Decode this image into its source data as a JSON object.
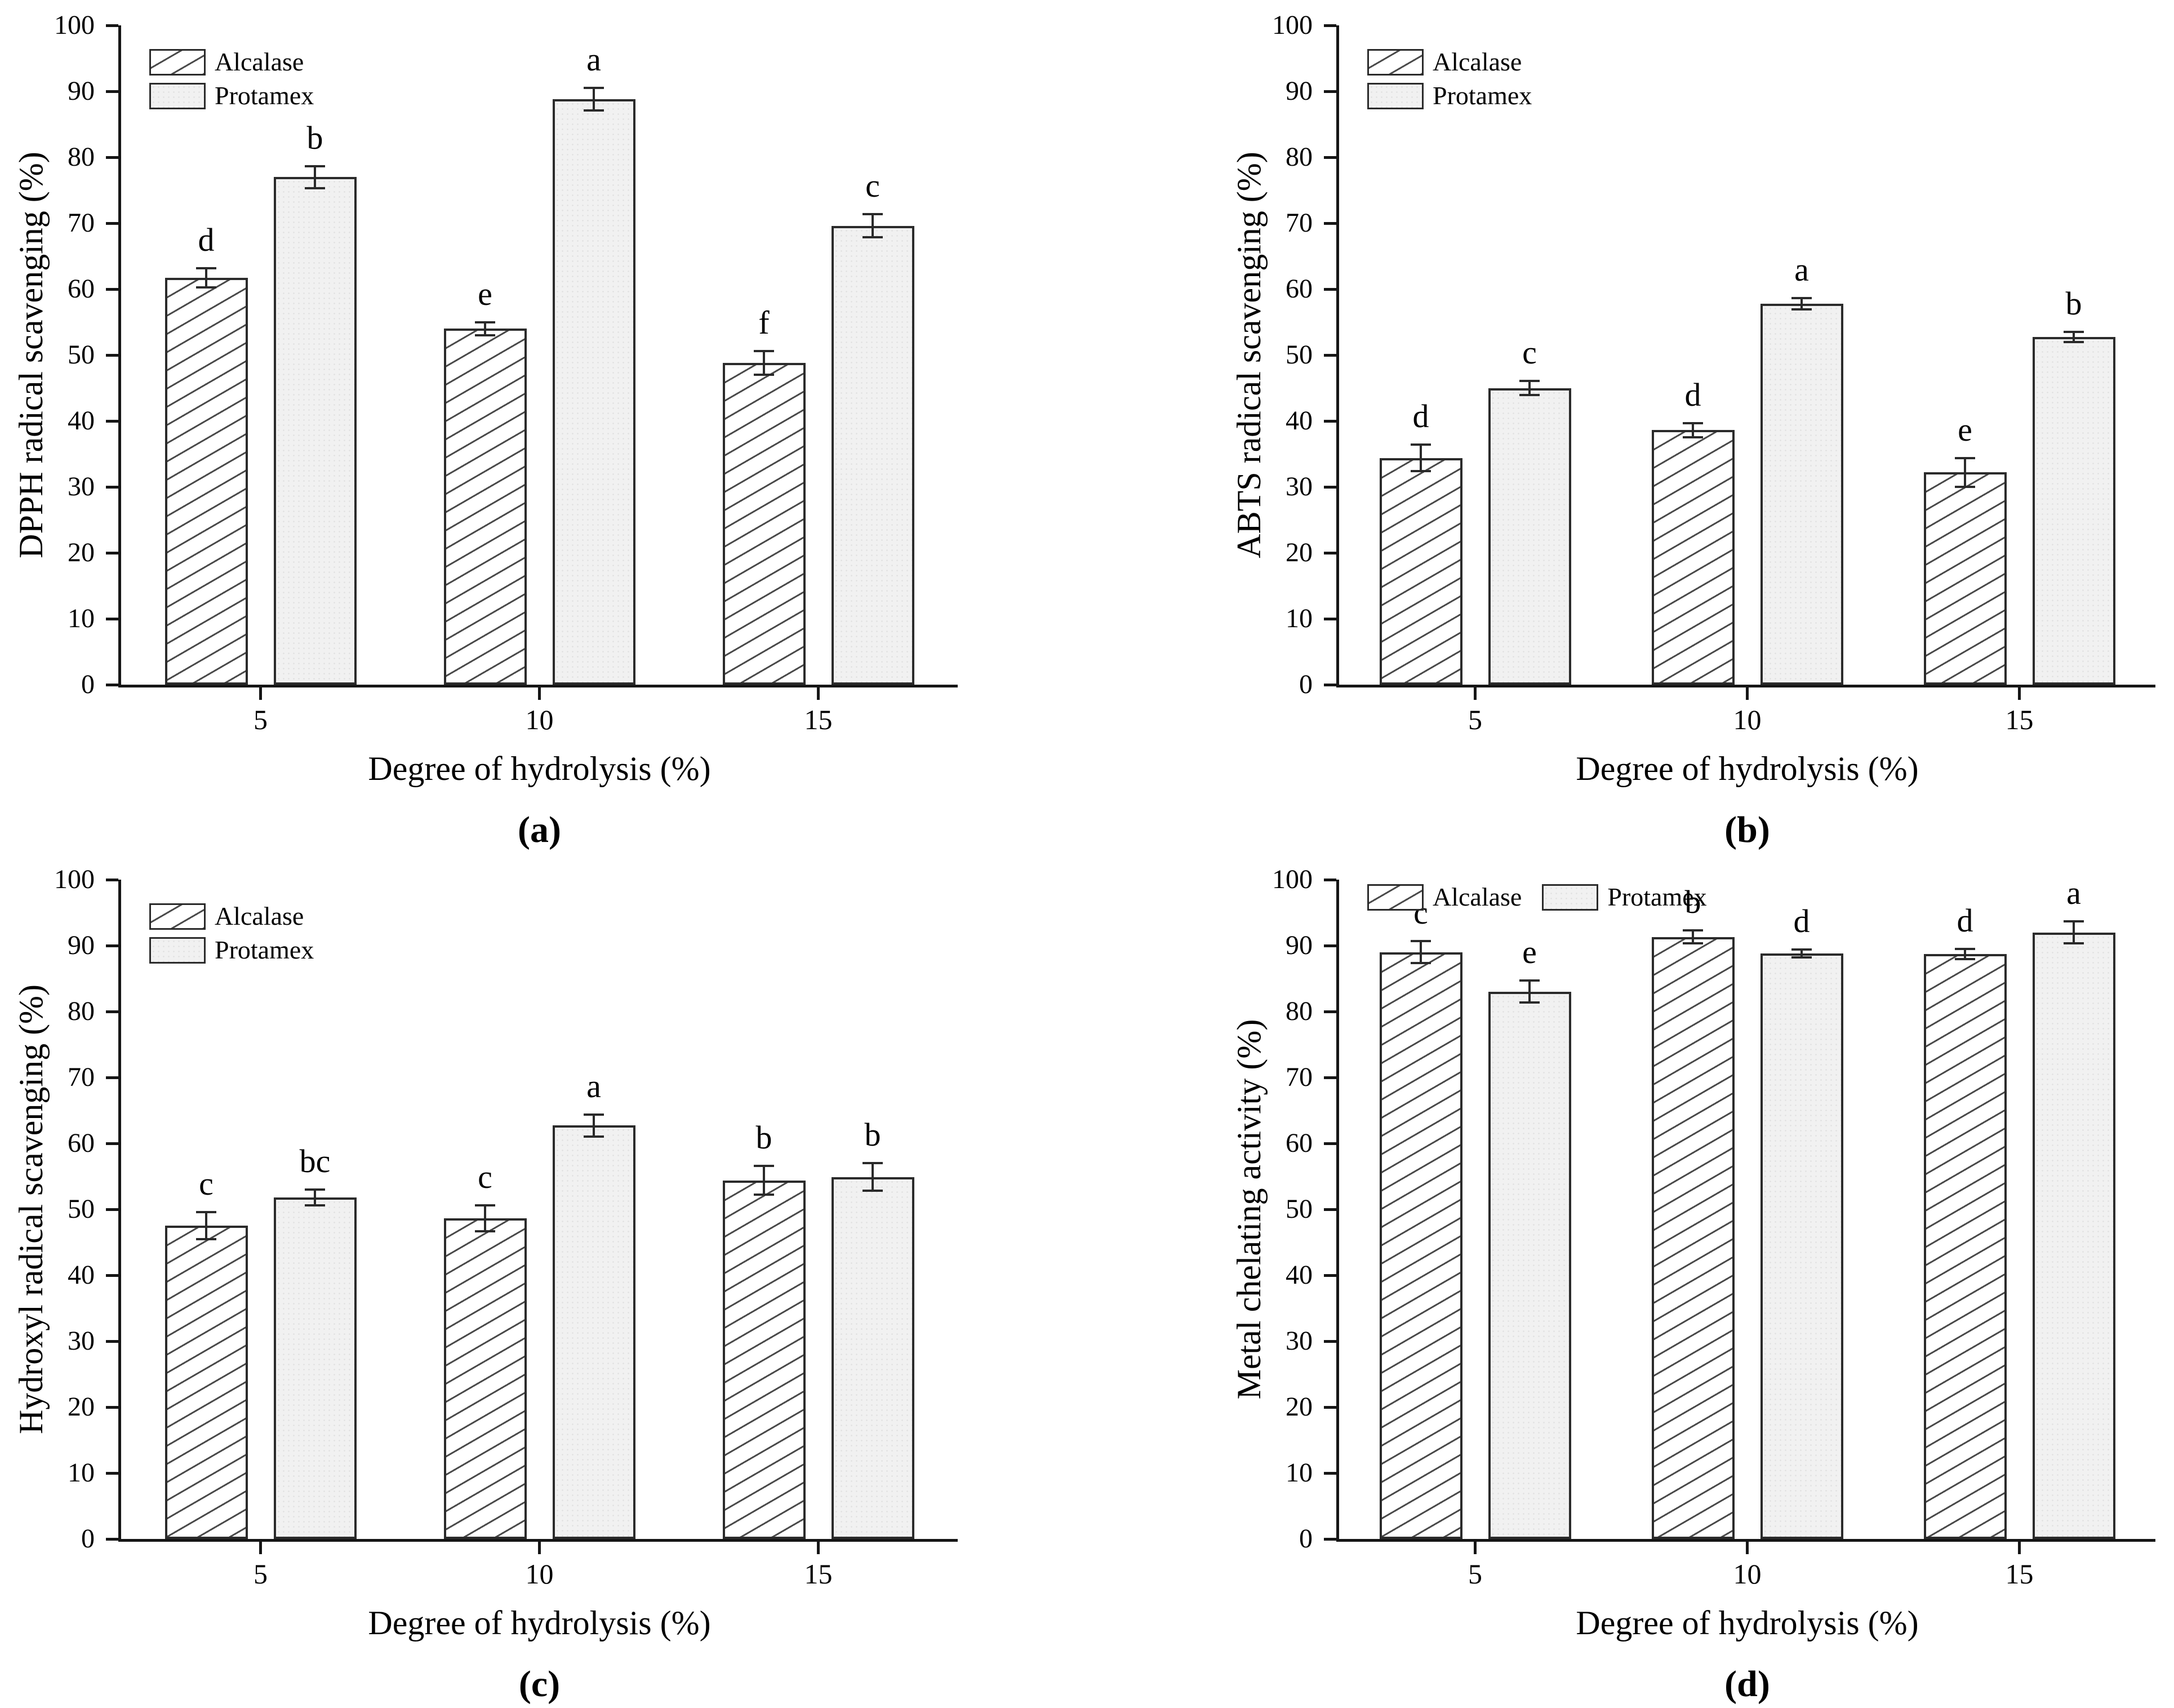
{
  "colors": {
    "background": "#ffffff",
    "axis": "#161616",
    "text": "#000000",
    "bar_border": "#2b2b2b",
    "hatch_line": "#4a4a4a",
    "plain_fill": "#f1f1f1"
  },
  "chart_data": [
    {
      "type": "bar",
      "caption": "(a)",
      "ylabel": "DPPH radical scavenging (%)",
      "xlabel": "Degree of hydrolysis (%)",
      "categories": [
        "5",
        "10",
        "15"
      ],
      "ylim": [
        0,
        100
      ],
      "yticks": [
        0,
        10,
        20,
        30,
        40,
        50,
        60,
        70,
        80,
        90,
        100
      ],
      "grid": false,
      "legend": {
        "orientation": "vertical",
        "position": "top-left"
      },
      "series": [
        {
          "name": "Alcalase",
          "style": "hatched",
          "values": [
            61.7,
            54.0,
            48.8
          ],
          "errors": [
            1.3,
            0.8,
            1.6
          ],
          "letters": [
            "d",
            "e",
            "f"
          ]
        },
        {
          "name": "Protamex",
          "style": "plain",
          "values": [
            77.0,
            88.8,
            69.6
          ],
          "errors": [
            1.5,
            1.5,
            1.6
          ],
          "letters": [
            "b",
            "a",
            "c"
          ]
        }
      ]
    },
    {
      "type": "bar",
      "caption": "(b)",
      "ylabel": "ABTS radical scavenging (%)",
      "xlabel": "Degree of hydrolysis (%)",
      "categories": [
        "5",
        "10",
        "15"
      ],
      "ylim": [
        0,
        100
      ],
      "yticks": [
        0,
        10,
        20,
        30,
        40,
        50,
        60,
        70,
        80,
        90,
        100
      ],
      "grid": false,
      "legend": {
        "orientation": "vertical",
        "position": "top-left"
      },
      "series": [
        {
          "name": "Alcalase",
          "style": "hatched",
          "values": [
            34.4,
            38.6,
            32.2
          ],
          "errors": [
            1.8,
            0.9,
            2.0
          ],
          "letters": [
            "d",
            "d",
            "e"
          ]
        },
        {
          "name": "Protamex",
          "style": "plain",
          "values": [
            45.0,
            57.8,
            52.7
          ],
          "errors": [
            0.9,
            0.7,
            0.6
          ],
          "letters": [
            "c",
            "a",
            "b"
          ]
        }
      ]
    },
    {
      "type": "bar",
      "caption": "(c)",
      "ylabel": "Hydroxyl radical scavenging (%)",
      "xlabel": "Degree of hydrolysis (%)",
      "categories": [
        "5",
        "10",
        "15"
      ],
      "ylim": [
        0,
        100
      ],
      "yticks": [
        0,
        10,
        20,
        30,
        40,
        50,
        60,
        70,
        80,
        90,
        100
      ],
      "grid": false,
      "legend": {
        "orientation": "vertical",
        "position": "top-left"
      },
      "series": [
        {
          "name": "Alcalase",
          "style": "hatched",
          "values": [
            47.5,
            48.6,
            54.4
          ],
          "errors": [
            1.9,
            1.8,
            2.0
          ],
          "letters": [
            "c",
            "c",
            "b"
          ]
        },
        {
          "name": "Protamex",
          "style": "plain",
          "values": [
            51.8,
            62.7,
            54.9
          ],
          "errors": [
            1.0,
            1.5,
            1.9
          ],
          "letters": [
            "bc",
            "a",
            "b"
          ]
        }
      ]
    },
    {
      "type": "bar",
      "caption": "(d)",
      "ylabel": "Metal chelating activity (%)",
      "xlabel": "Degree of hydrolysis (%)",
      "categories": [
        "5",
        "10",
        "15"
      ],
      "ylim": [
        0,
        100
      ],
      "yticks": [
        0,
        10,
        20,
        30,
        40,
        50,
        60,
        70,
        80,
        90,
        100
      ],
      "grid": false,
      "legend": {
        "orientation": "horizontal",
        "position": "top-left"
      },
      "series": [
        {
          "name": "Alcalase",
          "style": "hatched",
          "values": [
            89.0,
            91.3,
            88.7
          ],
          "errors": [
            1.5,
            0.8,
            0.6
          ],
          "letters": [
            "c",
            "b",
            "d"
          ]
        },
        {
          "name": "Protamex",
          "style": "plain",
          "values": [
            83.0,
            88.8,
            92.0
          ],
          "errors": [
            1.5,
            0.4,
            1.5
          ],
          "letters": [
            "e",
            "d",
            "a"
          ]
        }
      ]
    }
  ]
}
